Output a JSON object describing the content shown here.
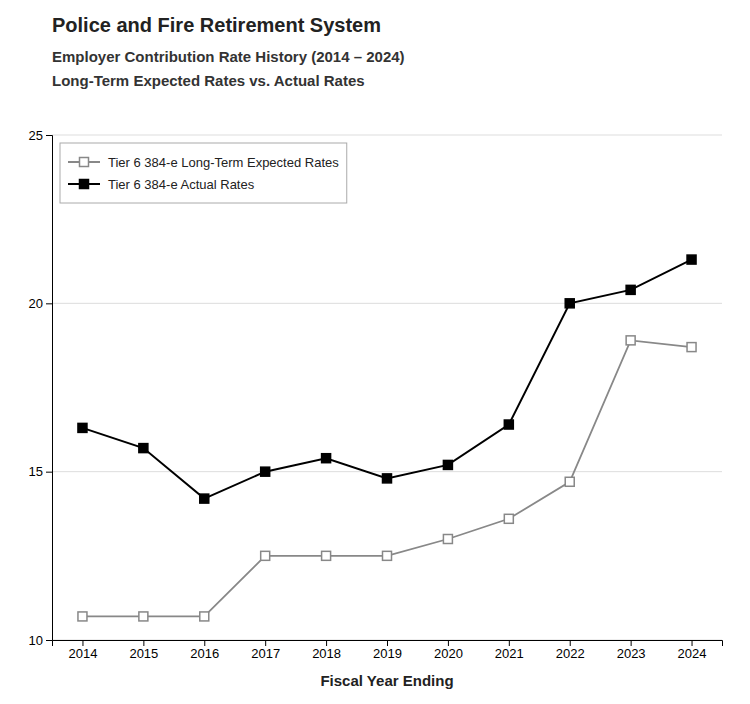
{
  "chart_data": {
    "type": "line",
    "title": "Police and Fire Retirement System",
    "subtitle": [
      "Employer Contribution Rate History (2014 – 2024)",
      "Long-Term Expected Rates vs. Actual Rates"
    ],
    "xlabel": "Fiscal Year Ending",
    "x": [
      2014,
      2015,
      2016,
      2017,
      2018,
      2019,
      2020,
      2021,
      2022,
      2023,
      2024
    ],
    "series": [
      {
        "name": "Tier 6 384-e Long-Term Expected Rates",
        "color": "#888888",
        "marker": "square-open",
        "line_style": "solid",
        "values": [
          10.7,
          10.7,
          10.7,
          12.5,
          12.5,
          12.5,
          13.0,
          13.6,
          14.7,
          18.9,
          18.7
        ]
      },
      {
        "name": "Tier 6 384-e Actual Rates",
        "color": "#000000",
        "marker": "square",
        "line_style": "solid",
        "values": [
          16.3,
          15.7,
          14.2,
          15.0,
          15.4,
          14.8,
          15.2,
          16.4,
          20.0,
          20.4,
          21.3
        ]
      }
    ],
    "xlim": [
      2013.5,
      2024.5
    ],
    "xticks": [
      2014,
      2015,
      2016,
      2017,
      2018,
      2019,
      2020,
      2021,
      2022,
      2023,
      2024
    ],
    "ylim": [
      10,
      25
    ],
    "yticks": [
      10,
      15,
      20,
      25
    ],
    "grid": true,
    "legend": "upper left"
  }
}
